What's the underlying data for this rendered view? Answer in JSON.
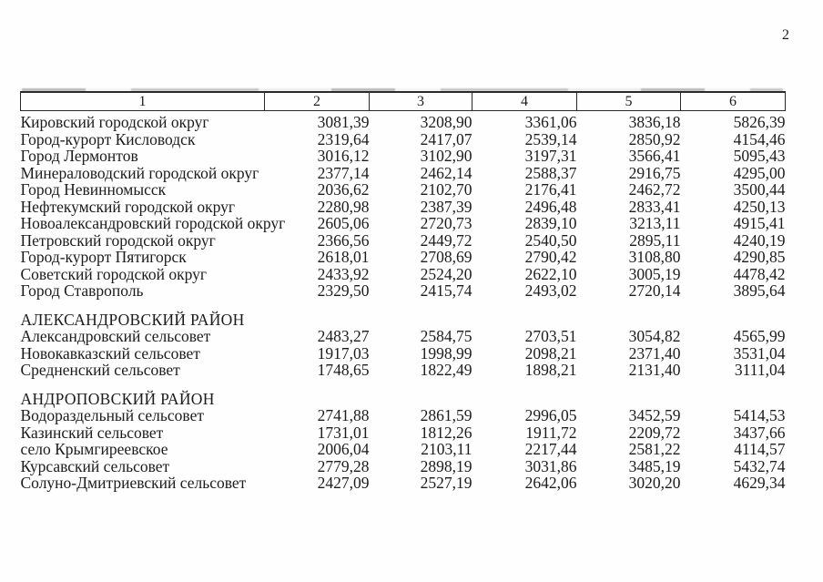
{
  "page": {
    "number": "2"
  },
  "table": {
    "header_cells": [
      "1",
      "2",
      "3",
      "4",
      "5",
      "6"
    ],
    "sections": [
      {
        "title": "",
        "rows": [
          {
            "name": "Кировский городской округ",
            "values": [
              "3081,39",
              "3208,90",
              "3361,06",
              "3836,18",
              "5826,39"
            ]
          },
          {
            "name": "Город-курорт Кисловодск",
            "values": [
              "2319,64",
              "2417,07",
              "2539,14",
              "2850,92",
              "4154,46"
            ]
          },
          {
            "name": "Город Лермонтов",
            "values": [
              "3016,12",
              "3102,90",
              "3197,31",
              "3566,41",
              "5095,43"
            ]
          },
          {
            "name": "Минераловодский городской округ",
            "values": [
              "2377,14",
              "2462,14",
              "2588,37",
              "2916,75",
              "4295,00"
            ]
          },
          {
            "name": "Город Невинномысск",
            "values": [
              "2036,62",
              "2102,70",
              "2176,41",
              "2462,72",
              "3500,44"
            ]
          },
          {
            "name": "Нефтекумский городской округ",
            "values": [
              "2280,98",
              "2387,39",
              "2496,48",
              "2833,41",
              "4250,13"
            ]
          },
          {
            "name": "Новоалександровский городской округ",
            "values": [
              "2605,06",
              "2720,73",
              "2839,10",
              "3213,11",
              "4915,41"
            ]
          },
          {
            "name": "Петровский городской округ",
            "values": [
              "2366,56",
              "2449,72",
              "2540,50",
              "2895,11",
              "4240,19"
            ]
          },
          {
            "name": "Город-курорт Пятигорск",
            "values": [
              "2618,01",
              "2708,69",
              "2790,42",
              "3108,80",
              "4290,85"
            ]
          },
          {
            "name": "Советский городской округ",
            "values": [
              "2433,92",
              "2524,20",
              "2622,10",
              "3005,19",
              "4478,42"
            ]
          },
          {
            "name": "Город Ставрополь",
            "values": [
              "2329,50",
              "2415,74",
              "2493,02",
              "2720,14",
              "3895,64"
            ]
          }
        ]
      },
      {
        "title": "АЛЕКСАНДРОВСКИЙ РАЙОН",
        "rows": [
          {
            "name": "Александровский сельсовет",
            "values": [
              "2483,27",
              "2584,75",
              "2703,51",
              "3054,82",
              "4565,99"
            ]
          },
          {
            "name": "Новокавказский сельсовет",
            "values": [
              "1917,03",
              "1998,99",
              "2098,21",
              "2371,40",
              "3531,04"
            ]
          },
          {
            "name": "Средненский сельсовет",
            "values": [
              "1748,65",
              "1822,49",
              "1898,21",
              "2131,40",
              "3111,04"
            ]
          }
        ]
      },
      {
        "title": "АНДРОПОВСКИЙ РАЙОН",
        "rows": [
          {
            "name": "Водораздельный сельсовет",
            "values": [
              "2741,88",
              "2861,59",
              "2996,05",
              "3452,59",
              "5414,53"
            ]
          },
          {
            "name": "Казинский сельсовет",
            "values": [
              "1731,01",
              "1812,26",
              "1911,72",
              "2209,72",
              "3437,66"
            ]
          },
          {
            "name": "село Крымгиреевское",
            "values": [
              "2006,04",
              "2103,11",
              "2217,44",
              "2581,22",
              "4114,57"
            ]
          },
          {
            "name": "Курсавский сельсовет",
            "values": [
              "2779,28",
              "2898,19",
              "3031,86",
              "3485,19",
              "5432,74"
            ]
          },
          {
            "name": "Солуно-Дмитриевский сельсовет",
            "values": [
              "2427,09",
              "2527,19",
              "2642,06",
              "3020,20",
              "4629,34"
            ]
          }
        ]
      }
    ]
  }
}
